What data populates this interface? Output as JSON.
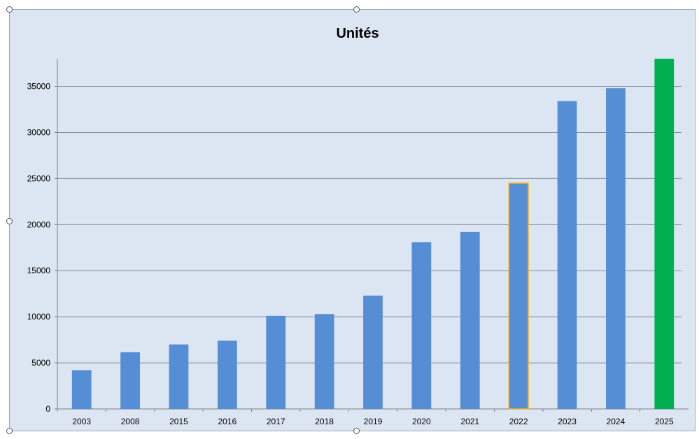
{
  "chart_data": {
    "type": "bar",
    "title": "Unités",
    "xlabel": "",
    "ylabel": "",
    "categories": [
      "2003",
      "2008",
      "2015",
      "2016",
      "2017",
      "2018",
      "2019",
      "2020",
      "2021",
      "2022",
      "2023",
      "2024",
      "2025"
    ],
    "values": [
      4200,
      6150,
      7000,
      7400,
      10100,
      10300,
      12300,
      18100,
      19200,
      24500,
      33400,
      34800,
      38000
    ],
    "ylim": [
      0,
      38000
    ],
    "yticks": [
      "0",
      "5000",
      "10000",
      "15000",
      "20000",
      "25000",
      "30000",
      "35000"
    ],
    "grid": true,
    "legend": "none",
    "colors": {
      "bar": "#558ed5",
      "highlight_outline": "#f0b323",
      "last_bar": "#00b050",
      "plot_background": "#dce6f2",
      "gridline": "#7f8c99"
    },
    "highlight_category": "2022",
    "accent_category": "2025"
  }
}
